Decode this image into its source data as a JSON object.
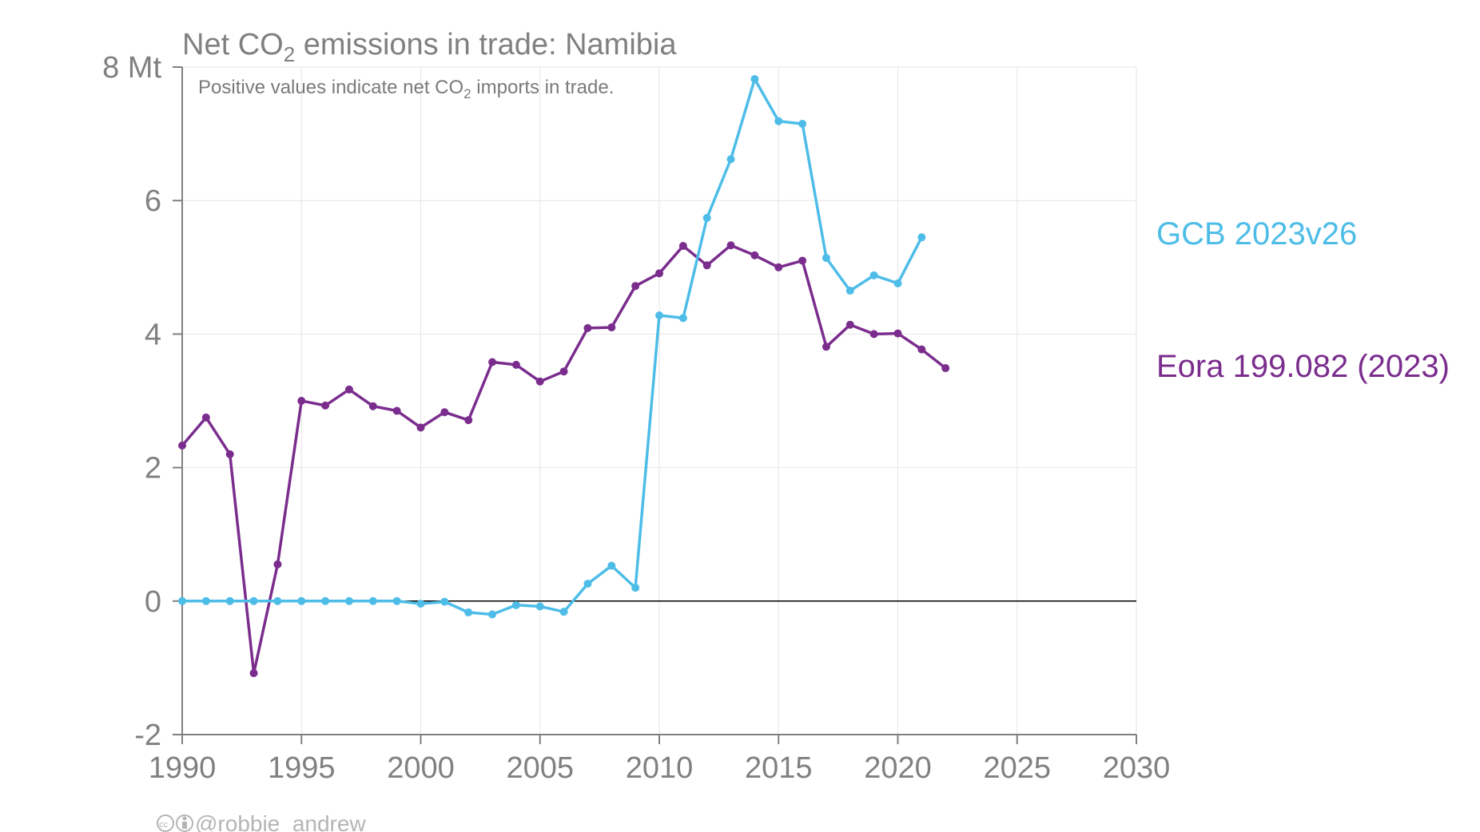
{
  "title_pre": "Net CO",
  "title_sub": "2",
  "title_post": " emissions in trade: Namibia",
  "subtitle_pre": "Positive values indicate net CO",
  "subtitle_sub": "2",
  "subtitle_post": " imports in trade.",
  "credit": "@robbie_andrew",
  "chart_data": {
    "type": "line",
    "title": "Net CO2 emissions in trade: Namibia",
    "ylim": [
      -2,
      8
    ],
    "xlim": [
      1990,
      2030
    ],
    "y_ticks": [
      -2,
      0,
      2,
      4,
      6,
      8
    ],
    "y_tick_labels": [
      "-2",
      "0",
      "2",
      "4",
      "6",
      "8 Mt"
    ],
    "x_ticks": [
      1990,
      1995,
      2000,
      2005,
      2010,
      2015,
      2020,
      2025,
      2030
    ],
    "x_tick_labels": [
      "1990",
      "1995",
      "2000",
      "2005",
      "2010",
      "2015",
      "2020",
      "2025",
      "2030"
    ],
    "grid": true,
    "legend_placement": "right",
    "series": [
      {
        "name": "Eora 199.082 (2023)",
        "color": "#7b2d8e",
        "x": [
          1990,
          1991,
          1992,
          1993,
          1994,
          1995,
          1996,
          1997,
          1998,
          1999,
          2000,
          2001,
          2002,
          2003,
          2004,
          2005,
          2006,
          2007,
          2008,
          2009,
          2010,
          2011,
          2012,
          2013,
          2014,
          2015,
          2016,
          2017,
          2018,
          2019,
          2020,
          2021,
          2022
        ],
        "values": [
          2.33,
          2.75,
          2.2,
          -1.08,
          0.55,
          3.0,
          2.93,
          3.17,
          2.92,
          2.85,
          2.6,
          2.83,
          2.71,
          3.58,
          3.54,
          3.29,
          3.44,
          4.09,
          4.1,
          4.72,
          4.91,
          5.32,
          5.03,
          5.33,
          5.18,
          5.0,
          5.1,
          3.81,
          4.14,
          4.0,
          4.01,
          3.77,
          3.49
        ]
      },
      {
        "name": "GCB 2023v26",
        "color": "#4dbde8",
        "x": [
          1990,
          1991,
          1992,
          1993,
          1994,
          1995,
          1996,
          1997,
          1998,
          1999,
          2000,
          2001,
          2002,
          2003,
          2004,
          2005,
          2006,
          2007,
          2008,
          2009,
          2010,
          2011,
          2012,
          2013,
          2014,
          2015,
          2016,
          2017,
          2018,
          2019,
          2020,
          2021
        ],
        "values": [
          0.0,
          0.0,
          0.0,
          0.0,
          0.0,
          0.0,
          0.0,
          0.0,
          0.0,
          0.0,
          -0.04,
          -0.01,
          -0.17,
          -0.2,
          -0.06,
          -0.08,
          -0.16,
          0.26,
          0.53,
          0.2,
          4.28,
          4.24,
          5.74,
          6.62,
          7.82,
          7.19,
          7.15,
          5.14,
          4.65,
          4.88,
          4.76,
          5.45
        ]
      }
    ]
  },
  "colors": {
    "axis": "#808080",
    "grid": "#e6e6e6",
    "zero_line": "#000000"
  }
}
